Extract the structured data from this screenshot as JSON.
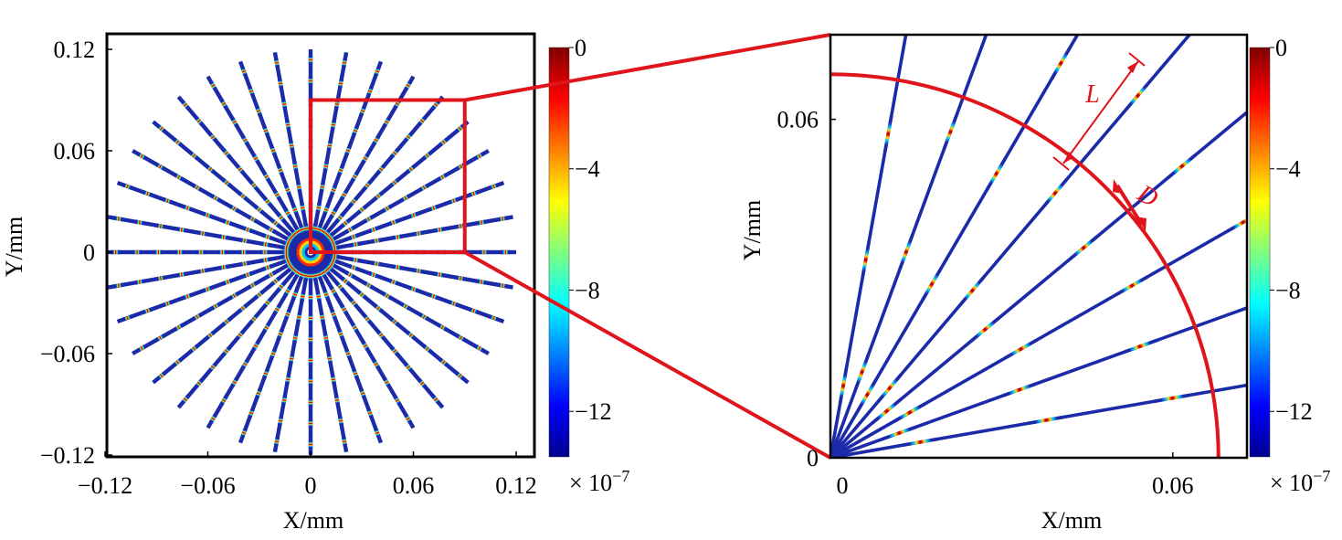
{
  "chart_data": [
    {
      "type": "heatmap",
      "panel": "left",
      "title": "",
      "xlabel": "X/mm",
      "ylabel": "Y/mm",
      "xlim": [
        -0.12,
        0.12
      ],
      "ylim": [
        -0.12,
        0.12
      ],
      "xticks": [
        "−0.12",
        "−0.06",
        "0",
        "0.06",
        "0.12"
      ],
      "xtick_values": [
        -0.12,
        -0.06,
        0,
        0.06,
        0.12
      ],
      "yticks": [
        "0.12",
        "0.06",
        "0",
        "−0.06",
        "−0.12"
      ],
      "ytick_values": [
        0.12,
        0.06,
        0,
        -0.06,
        -0.12
      ],
      "pattern": {
        "ray_count": 36,
        "inner_radius": 0.008,
        "outer_radius": 0.12,
        "fringe_count": 9
      },
      "colorbar": {
        "ticks": [
          "0",
          "−4",
          "−8",
          "−12"
        ],
        "tick_values": [
          0,
          -4,
          -8,
          -12
        ],
        "range": [
          -13.5,
          0
        ],
        "multiplier_label": "× 10",
        "multiplier_exp": "−7",
        "colormap": "jet"
      },
      "zoom_box": {
        "x": [
          0,
          0.09
        ],
        "y": [
          0,
          0.09
        ],
        "color": "#e0141b"
      }
    },
    {
      "type": "heatmap",
      "panel": "right",
      "title": "",
      "xlabel": "X/mm",
      "ylabel": "Y/mm",
      "xlim": [
        0,
        0.073
      ],
      "ylim": [
        0,
        0.075
      ],
      "xticks": [
        "0",
        "0.06"
      ],
      "xtick_values": [
        0,
        0.06
      ],
      "yticks": [
        "0.06",
        "0"
      ],
      "ytick_values": [
        0.06,
        0
      ],
      "pattern": {
        "ray_angles_deg": [
          10,
          20,
          30,
          40,
          50,
          60,
          70,
          80
        ],
        "outer_radius": 0.1,
        "fringe_count": 9,
        "arc_radius": 0.068
      },
      "annotations": [
        "L",
        "D"
      ],
      "colorbar": {
        "ticks": [
          "0",
          "−4",
          "−8",
          "−12"
        ],
        "tick_values": [
          0,
          -4,
          -8,
          -12
        ],
        "range": [
          -13.5,
          0
        ],
        "multiplier_label": "× 10",
        "multiplier_exp": "−7",
        "colormap": "jet"
      }
    }
  ],
  "colors": {
    "red": "#e0141b",
    "ray_base": "#1b2aa8"
  }
}
